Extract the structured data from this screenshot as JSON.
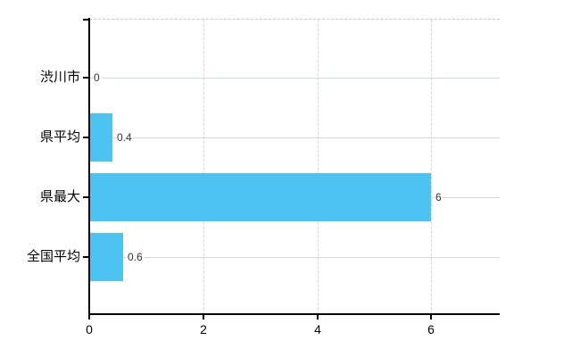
{
  "chart_data": {
    "type": "bar",
    "orientation": "horizontal",
    "title": "",
    "categories": [
      "渋川市",
      "県平均",
      "県最大",
      "全国平均"
    ],
    "values": [
      0,
      0.4,
      6,
      0.6
    ],
    "value_labels": [
      "0",
      "0.4",
      "6",
      "0.6"
    ],
    "x_tick_labels": [
      "0",
      "2",
      "4",
      "6"
    ],
    "x_tick_values": [
      0,
      2,
      4,
      6
    ],
    "xlim": [
      0,
      7.2
    ],
    "ylabel": "",
    "xlabel": "",
    "grid": true,
    "legend_position": "none",
    "colors": {
      "bar": "#4CC3F0",
      "axis": "#000000",
      "gridline": "#D3D9D3",
      "plot_top_border": "#C9C9C9",
      "category_label": "#000000",
      "value_label": "#333333",
      "tick_label": "#000000"
    }
  }
}
